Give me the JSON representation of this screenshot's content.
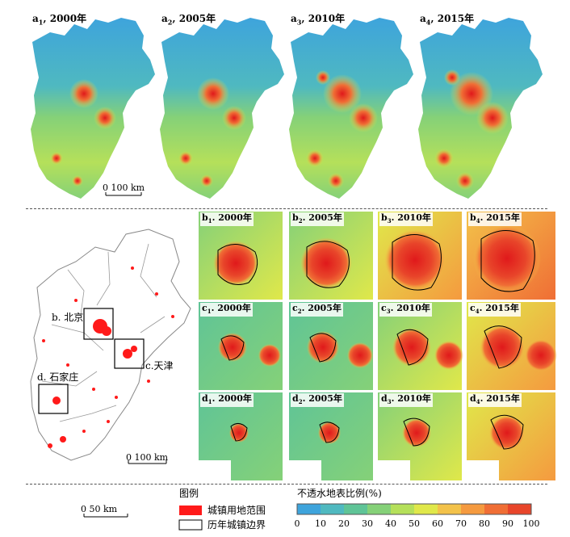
{
  "row_a": [
    {
      "letter": "a",
      "sub": "1",
      "year": "2000年"
    },
    {
      "letter": "a",
      "sub": "2",
      "year": "2005年"
    },
    {
      "letter": "a",
      "sub": "3",
      "year": "2010年"
    },
    {
      "letter": "a",
      "sub": "4",
      "year": "2015年"
    }
  ],
  "scale_a": "0   100 km",
  "grid": {
    "b": [
      {
        "letter": "b",
        "sub": "1",
        "year": "2000年"
      },
      {
        "letter": "b",
        "sub": "2",
        "year": "2005年"
      },
      {
        "letter": "b",
        "sub": "3",
        "year": "2010年"
      },
      {
        "letter": "b",
        "sub": "4",
        "year": "2015年"
      }
    ],
    "c": [
      {
        "letter": "c",
        "sub": "1",
        "year": "2000年"
      },
      {
        "letter": "c",
        "sub": "2",
        "year": "2005年"
      },
      {
        "letter": "c",
        "sub": "3",
        "year": "2010年"
      },
      {
        "letter": "c",
        "sub": "4",
        "year": "2015年"
      }
    ],
    "d": [
      {
        "letter": "d",
        "sub": "1",
        "year": "2000年"
      },
      {
        "letter": "d",
        "sub": "2",
        "year": "2005年"
      },
      {
        "letter": "d",
        "sub": "3",
        "year": "2010年"
      },
      {
        "letter": "d",
        "sub": "4",
        "year": "2015年"
      }
    ]
  },
  "overview": {
    "label_b": "b. 北京",
    "label_c": "c.天津",
    "label_d": "d. 石家庄",
    "scale": "0   100 km"
  },
  "legend": {
    "title": "图例",
    "urban_label": "城镇用地范围",
    "boundary_label": "历年城镇边界",
    "urban_color": "#ff1a1a",
    "scale": "0      50 km"
  },
  "colorbar": {
    "title": "不透水地表比例(%)",
    "ticks": [
      "0",
      "10",
      "20",
      "30",
      "40",
      "50",
      "60",
      "70",
      "80",
      "90",
      "100"
    ],
    "colors": [
      "#3ea4dc",
      "#4fb9c0",
      "#5fc497",
      "#85d178",
      "#b5e05a",
      "#e0e84a",
      "#f3c24a",
      "#f59a3f",
      "#f06e35",
      "#e8452a",
      "#e0191b"
    ]
  }
}
